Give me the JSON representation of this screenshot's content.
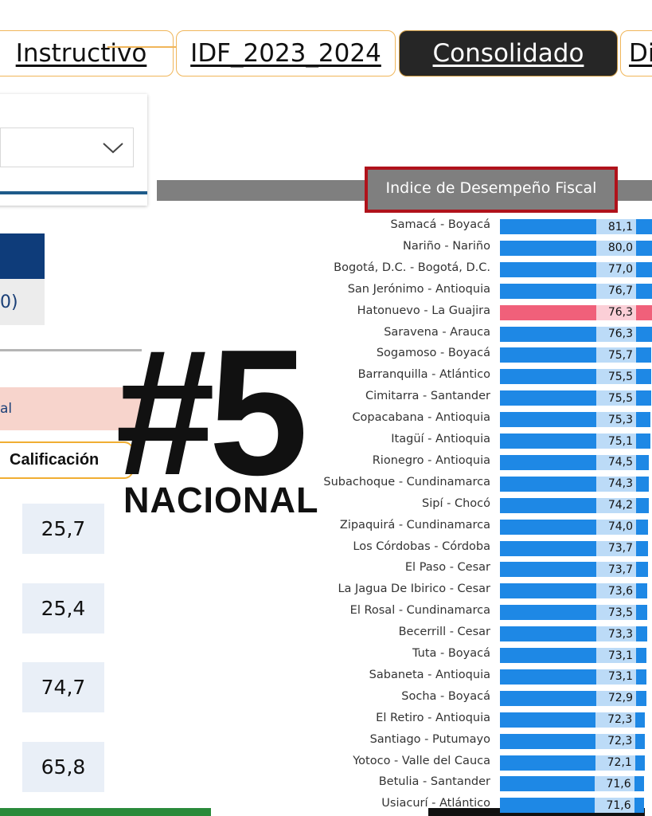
{
  "tabs": [
    {
      "label": "Instructivo",
      "active": false
    },
    {
      "label": "IDF_2023_2024",
      "active": false
    },
    {
      "label": "Consolidado",
      "active": true
    },
    {
      "label": "Di",
      "active": false
    }
  ],
  "left_panel": {
    "partial_value": "0)",
    "pink_label": "al",
    "calificacion_label": "Calificación",
    "scores": [
      "25,7",
      "25,4",
      "74,7",
      "65,8"
    ]
  },
  "overlay": {
    "rank": "#5",
    "rank_label": "NACIONAL"
  },
  "colors": {
    "bar": "#1e88e5",
    "highlight": "#f0607a",
    "title_border": "#b0121b",
    "tab_border": "#f0b65a"
  },
  "chart_data": {
    "type": "bar",
    "orientation": "horizontal",
    "title": "Indice de Desempeño Fiscal",
    "highlighted": "Hatonuevo - La Guajira",
    "categories": [
      "Samacá - Boyacá",
      "Nariño - Nariño",
      "Bogotá, D.C. - Bogotá, D.C.",
      "San Jerónimo - Antioquia",
      "Hatonuevo - La Guajira",
      "Saravena - Arauca",
      "Sogamoso - Boyacá",
      "Barranquilla - Atlántico",
      "Cimitarra - Santander",
      "Copacabana - Antioquia",
      "Itagüí - Antioquia",
      "Rionegro - Antioquia",
      "Subachoque - Cundinamarca",
      "Sipí - Chocó",
      "Zipaquirá - Cundinamarca",
      "Los Córdobas - Córdoba",
      "El Paso - Cesar",
      "La Jagua De Ibirico - Cesar",
      "El Rosal - Cundinamarca",
      "Becerrill - Cesar",
      "Tuta - Boyacá",
      "Sabaneta - Antioquia",
      "Socha - Boyacá",
      "El Retiro - Antioquia",
      "Santiago - Putumayo",
      "Yotoco - Valle del Cauca",
      "Betulia - Santander",
      "Usiacurí - Atlántico"
    ],
    "values": [
      81.1,
      80.0,
      77.0,
      76.7,
      76.3,
      76.3,
      75.7,
      75.5,
      75.5,
      75.3,
      75.1,
      74.5,
      74.3,
      74.2,
      74.0,
      73.7,
      73.7,
      73.6,
      73.5,
      73.3,
      73.1,
      73.1,
      72.9,
      72.3,
      72.3,
      72.1,
      71.6,
      71.6
    ],
    "value_labels": [
      "81,1",
      "80,0",
      "77,0",
      "76,7",
      "76,3",
      "76,3",
      "75,7",
      "75,5",
      "75,5",
      "75,3",
      "75,1",
      "74,5",
      "74,3",
      "74,2",
      "74,0",
      "73,7",
      "73,7",
      "73,6",
      "73,5",
      "73,3",
      "73,1",
      "73,1",
      "72,9",
      "72,3",
      "72,3",
      "72,1",
      "71,6",
      "71,6"
    ]
  }
}
